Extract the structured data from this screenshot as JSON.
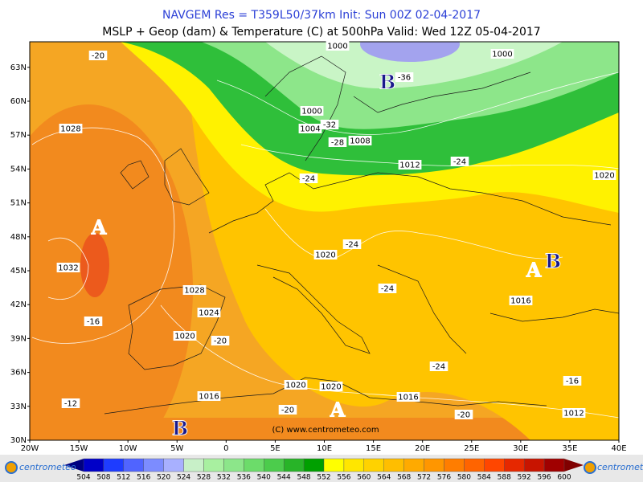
{
  "header": {
    "title": "NAVGEM Res = T359L50/37km   Init: Sun 00Z 02-04-2017",
    "subtitle": "MSLP + Geop (dam) & Temperature (C) at 500hPa  Valid: Wed 12Z 05-04-2017"
  },
  "map": {
    "lat_labels": [
      "30N",
      "33N",
      "36N",
      "39N",
      "42N",
      "45N",
      "48N",
      "51N",
      "54N",
      "57N",
      "60N",
      "63N"
    ],
    "lon_labels": [
      "20W",
      "15W",
      "10W",
      "5W",
      "0",
      "5E",
      "10E",
      "15E",
      "20E",
      "25E",
      "30E",
      "35E",
      "40E"
    ],
    "pressure_labels": [
      "1000",
      "1000",
      "1000",
      "1004",
      "1008",
      "1012",
      "1020",
      "1028",
      "1032",
      "1020",
      "1028",
      "1024",
      "1020",
      "1016",
      "1020",
      "1020",
      "1016",
      "1016",
      "1012"
    ],
    "temperature_labels": [
      "-20",
      "-36",
      "-32",
      "-28",
      "-24",
      "-24",
      "-24",
      "-24",
      "-16",
      "-20",
      "-24",
      "-16",
      "-12",
      "-20",
      "-20"
    ],
    "centers": [
      "A",
      "A",
      "A",
      "B",
      "B",
      "B"
    ],
    "credit": "(C) www.centrometeo.com"
  },
  "colorbar": {
    "labels": [
      "504",
      "508",
      "512",
      "516",
      "520",
      "524",
      "528",
      "532",
      "536",
      "540",
      "544",
      "548",
      "552",
      "556",
      "560",
      "564",
      "568",
      "572",
      "576",
      "580",
      "584",
      "588",
      "592",
      "596",
      "600"
    ],
    "brand": "centrometeo"
  }
}
